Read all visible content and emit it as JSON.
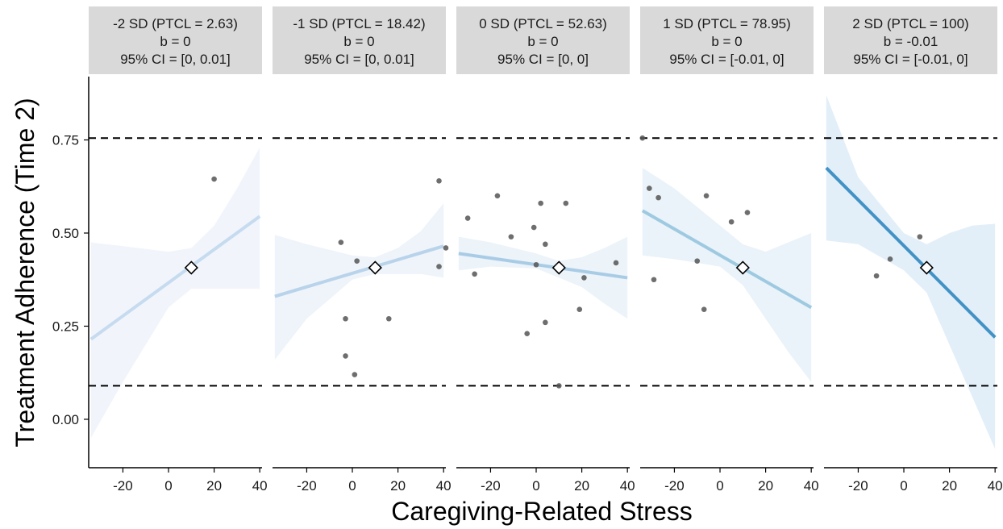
{
  "chart_data": {
    "type": "scatter",
    "xlabel": "Caregiving-Related Stress",
    "ylabel": "Treatment Adherence (Time 2)",
    "xlim": [
      -35,
      41
    ],
    "ylim": [
      -0.13,
      0.92
    ],
    "x_ticks": [
      -20,
      0,
      20,
      40
    ],
    "x_tick_labels": [
      "-20",
      "0",
      "20",
      "40"
    ],
    "y_ticks": [
      0,
      0.25,
      0.5,
      0.75
    ],
    "y_tick_labels": [
      "0.00",
      "0.25",
      "0.50",
      "0.75"
    ],
    "hlines": [
      0.755,
      0.09
    ],
    "diamond": {
      "x": 10,
      "y": 0.407
    },
    "panels": [
      {
        "strip": [
          "-2 SD (PTCL = 2.63)",
          "b = 0",
          "95% CI = [0, 0.01]"
        ],
        "line": {
          "x": [
            -34,
            40
          ],
          "y": [
            0.215,
            0.545
          ],
          "color": "#c6dbef"
        },
        "band": {
          "x": [
            -34,
            -20,
            0,
            10,
            20,
            30,
            40
          ],
          "upper": [
            0.475,
            0.465,
            0.45,
            0.46,
            0.52,
            0.62,
            0.73
          ],
          "lower": [
            -0.05,
            0.1,
            0.3,
            0.35,
            0.35,
            0.35,
            0.35
          ],
          "color": "#f1f5fb"
        },
        "points": [
          [
            20,
            0.645
          ]
        ]
      },
      {
        "strip": [
          "-1 SD (PTCL = 18.42)",
          "b = 0",
          "95% CI = [0, 0.01]"
        ],
        "line": {
          "x": [
            -34,
            40
          ],
          "y": [
            0.33,
            0.465
          ],
          "color": "#b8d3ea"
        },
        "band": {
          "x": [
            -34,
            -20,
            0,
            10,
            20,
            30,
            40
          ],
          "upper": [
            0.495,
            0.47,
            0.44,
            0.435,
            0.46,
            0.505,
            0.58
          ],
          "lower": [
            0.16,
            0.27,
            0.375,
            0.39,
            0.39,
            0.39,
            0.38
          ],
          "color": "#eef4fa"
        },
        "points": [
          [
            -5,
            0.475
          ],
          [
            -3,
            0.27
          ],
          [
            -3,
            0.17
          ],
          [
            1,
            0.12
          ],
          [
            2,
            0.425
          ],
          [
            16,
            0.27
          ],
          [
            38,
            0.64
          ],
          [
            38,
            0.41
          ],
          [
            41,
            0.46
          ]
        ]
      },
      {
        "strip": [
          "0 SD (PTCL = 52.63)",
          "b = 0",
          "95% CI = [0, 0]"
        ],
        "line": {
          "x": [
            -34,
            40
          ],
          "y": [
            0.445,
            0.38
          ],
          "color": "#a9cce6"
        },
        "band": {
          "x": [
            -34,
            -20,
            0,
            10,
            20,
            30,
            40
          ],
          "upper": [
            0.49,
            0.475,
            0.445,
            0.425,
            0.435,
            0.46,
            0.49
          ],
          "lower": [
            0.4,
            0.41,
            0.405,
            0.38,
            0.355,
            0.31,
            0.27
          ],
          "color": "#ecf3f9"
        },
        "points": [
          [
            -30,
            0.54
          ],
          [
            -27,
            0.39
          ],
          [
            -17,
            0.6
          ],
          [
            -11,
            0.49
          ],
          [
            -4,
            0.23
          ],
          [
            -1,
            0.515
          ],
          [
            0,
            0.415
          ],
          [
            2,
            0.58
          ],
          [
            4,
            0.47
          ],
          [
            4,
            0.26
          ],
          [
            10,
            0.09
          ],
          [
            13,
            0.58
          ],
          [
            19,
            0.295
          ],
          [
            21,
            0.38
          ],
          [
            35,
            0.42
          ]
        ]
      },
      {
        "strip": [
          "1 SD (PTCL = 78.95)",
          "b = 0",
          "95% CI = [-0.01, 0]"
        ],
        "line": {
          "x": [
            -34,
            40
          ],
          "y": [
            0.56,
            0.3
          ],
          "color": "#9ecae1"
        },
        "band": {
          "x": [
            -34,
            -20,
            0,
            10,
            20,
            30,
            40
          ],
          "upper": [
            0.675,
            0.62,
            0.52,
            0.47,
            0.45,
            0.475,
            0.5
          ],
          "lower": [
            0.44,
            0.43,
            0.41,
            0.36,
            0.27,
            0.18,
            0.1
          ],
          "color": "#eaf3f9"
        },
        "points": [
          [
            -34,
            0.755
          ],
          [
            -31,
            0.62
          ],
          [
            -29,
            0.375
          ],
          [
            -27,
            0.595
          ],
          [
            -10,
            0.425
          ],
          [
            -7,
            0.295
          ],
          [
            -6,
            0.6
          ],
          [
            5,
            0.53
          ],
          [
            12,
            0.555
          ]
        ]
      },
      {
        "strip": [
          "2 SD (PTCL = 100)",
          "b = -0.01",
          "95% CI = [-0.01, 0]"
        ],
        "line": {
          "x": [
            -34,
            40
          ],
          "y": [
            0.675,
            0.22
          ],
          "color": "#4292c6"
        },
        "band": {
          "x": [
            -34,
            -20,
            0,
            10,
            20,
            30,
            40
          ],
          "upper": [
            0.87,
            0.65,
            0.5,
            0.47,
            0.5,
            0.52,
            0.525
          ],
          "lower": [
            0.48,
            0.47,
            0.4,
            0.34,
            0.2,
            0.06,
            -0.08
          ],
          "color": "#e3eff8"
        },
        "points": [
          [
            -12,
            0.385
          ],
          [
            -6,
            0.43
          ],
          [
            7,
            0.49
          ]
        ]
      }
    ]
  }
}
